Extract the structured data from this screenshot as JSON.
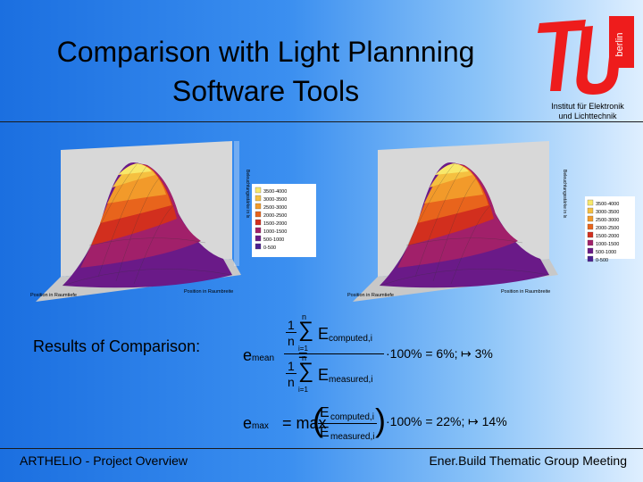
{
  "slide": {
    "title_line1": "Comparison with Light Plannning",
    "title_line2": "Software Tools",
    "logo": {
      "institute_line1": "Institut für Elektronik",
      "institute_line2": "und Lichttechnik",
      "city": "berlin"
    },
    "results_label": "Results of Comparison:",
    "footer_left": "ARTHELIO - Project Overview",
    "footer_right": "Ener.Build Thematic Group Meeting"
  },
  "plots": {
    "left": {
      "legend": [
        "3500-4000",
        "3000-3500",
        "2500-3000",
        "2000-2500",
        "1500-2000",
        "1000-1500",
        "500-1000",
        "0-500"
      ],
      "axis_x": "Position in Raumbreite",
      "axis_y": "Position in Raumtiefe",
      "axis_z": "Beleuchtungsstärke in lx"
    },
    "right": {
      "legend": [
        "3500-4000",
        "3000-3500",
        "2500-3000",
        "2000-2500",
        "1500-2000",
        "1000-1500",
        "500-1000",
        "0-500"
      ],
      "axis_x": "Position in Raumbreite",
      "axis_y": "Position in Raumtiefe",
      "axis_z": "Beleuchtungsstärke in lx"
    }
  },
  "formulas": {
    "one": "1",
    "n": "n",
    "i_eq_1": "i=1",
    "sum": "∑",
    "e_mean": "e",
    "mean_sub": "mean",
    "E": "E",
    "computed_sub": "computed,i",
    "measured_sub": "measured,i",
    "eq1_result": "·100% = 6%;",
    "eq1_arrow": "↦ 3%",
    "e_max": "e",
    "max_sub": "max",
    "eq2_mid": "= max",
    "eq2_result": "·100% = 22%;",
    "eq2_arrow": "↦ 14%",
    "equals": "="
  },
  "colors": {
    "band1": "#f8e86a",
    "band2": "#f5c040",
    "band3": "#f29a2a",
    "band4": "#e8641c",
    "band5": "#d22f1e",
    "band6": "#a1206a",
    "band7": "#6a1a88",
    "band8": "#4b2090"
  }
}
